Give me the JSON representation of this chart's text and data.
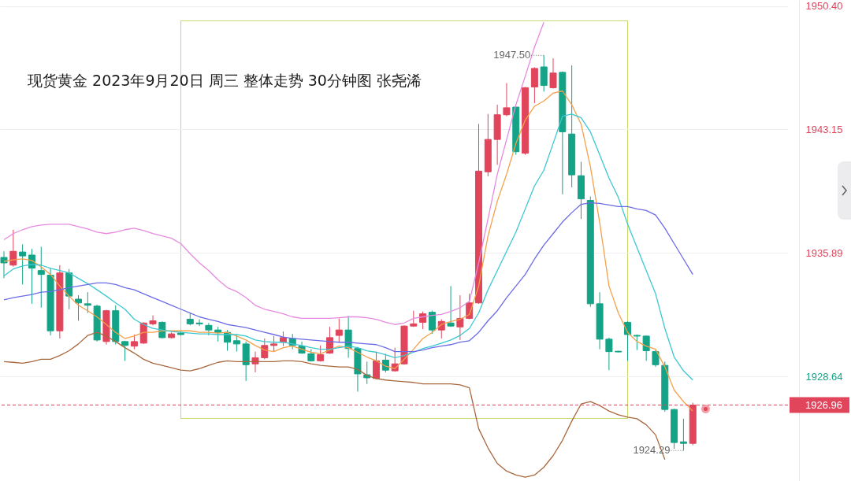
{
  "chart_data": {
    "type": "candlestick",
    "title": "现货黄金 2023年9月20日 周三 整体走势 30分钟图 张尧浠",
    "categories": [
      null,
      null,
      null,
      null,
      null,
      null,
      null,
      null,
      null,
      null,
      null,
      null,
      null,
      null,
      null,
      null,
      null,
      null,
      null,
      null,
      null,
      null,
      null,
      null,
      null,
      null,
      null,
      null,
      null,
      null,
      null,
      null,
      null,
      null,
      null,
      null,
      null,
      null,
      null,
      null,
      null,
      null,
      null,
      null,
      null,
      null,
      null,
      null,
      null,
      null,
      null,
      null,
      null,
      null,
      null,
      null,
      null,
      null,
      null,
      null,
      null,
      null,
      null,
      null,
      null,
      null,
      null,
      null,
      null,
      null,
      null,
      null,
      null,
      null,
      null
    ],
    "ohlc": [
      [
        1935.63,
        1935.99,
        1934.41,
        1935.31
      ],
      [
        1935.18,
        1937.26,
        1935.09,
        1935.99
      ],
      [
        1935.95,
        1936.4,
        1934.04,
        1935.72
      ],
      [
        1935.77,
        1936.13,
        1932.91,
        1935.0
      ],
      [
        1934.86,
        1936.26,
        1932.68,
        1934.63
      ],
      [
        1934.59,
        1935.0,
        1931.05,
        1931.32
      ],
      [
        1931.32,
        1935.18,
        1930.87,
        1934.72
      ],
      [
        1934.72,
        1934.95,
        1932.59,
        1933.36
      ],
      [
        1933.18,
        1933.41,
        1931.91,
        1932.96
      ],
      [
        1932.91,
        1933.59,
        1932.37,
        1932.82
      ],
      [
        1932.77,
        1932.86,
        1930.69,
        1930.78
      ],
      [
        1930.69,
        1932.55,
        1930.51,
        1932.5
      ],
      [
        1932.5,
        1932.82,
        1930.51,
        1930.69
      ],
      [
        1930.69,
        1930.74,
        1929.56,
        1930.46
      ],
      [
        1930.42,
        1931.1,
        1930.24,
        1930.69
      ],
      [
        1930.6,
        1931.82,
        1930.55,
        1931.78
      ],
      [
        1931.73,
        1932.23,
        1931.64,
        1931.91
      ],
      [
        1931.82,
        1931.87,
        1930.87,
        1930.92
      ],
      [
        1930.92,
        1931.23,
        1930.87,
        1931.14
      ],
      [
        1931.19,
        1931.28,
        1931.05,
        1931.1
      ],
      [
        1932.0,
        1932.37,
        1931.64,
        1931.73
      ],
      [
        1931.78,
        1932.0,
        1931.6,
        1931.73
      ],
      [
        1931.64,
        1931.78,
        1931.05,
        1931.37
      ],
      [
        1931.37,
        1931.55,
        1930.69,
        1931.23
      ],
      [
        1931.23,
        1931.37,
        1930.15,
        1930.65
      ],
      [
        1930.74,
        1931.1,
        1930.1,
        1930.55
      ],
      [
        1930.55,
        1930.69,
        1928.38,
        1929.33
      ],
      [
        1929.38,
        1930.1,
        1928.88,
        1929.74
      ],
      [
        1929.74,
        1930.87,
        1929.65,
        1930.46
      ],
      [
        1930.46,
        1931.01,
        1930.1,
        1930.55
      ],
      [
        1930.65,
        1931.28,
        1930.42,
        1930.92
      ],
      [
        1930.87,
        1931.14,
        1930.24,
        1930.46
      ],
      [
        1930.42,
        1930.69,
        1929.97,
        1930.01
      ],
      [
        1929.97,
        1930.24,
        1929.51,
        1929.56
      ],
      [
        1929.56,
        1930.46,
        1929.51,
        1929.92
      ],
      [
        1930.01,
        1931.55,
        1929.97,
        1930.92
      ],
      [
        1931.05,
        1932.05,
        1930.65,
        1931.37
      ],
      [
        1931.37,
        1932.19,
        1929.74,
        1930.28
      ],
      [
        1930.28,
        1930.37,
        1927.75,
        1928.79
      ],
      [
        1928.74,
        1929.51,
        1928.2,
        1928.56
      ],
      [
        1928.52,
        1930.1,
        1928.47,
        1929.56
      ],
      [
        1929.6,
        1929.97,
        1928.88,
        1929.01
      ],
      [
        1928.97,
        1930.33,
        1928.92,
        1929.38
      ],
      [
        1929.38,
        1931.64,
        1929.33,
        1931.6
      ],
      [
        1931.6,
        1932.5,
        1931.55,
        1931.73
      ],
      [
        1931.82,
        1932.46,
        1931.42,
        1932.32
      ],
      [
        1932.41,
        1932.5,
        1931.14,
        1931.37
      ],
      [
        1931.37,
        1932.0,
        1930.87,
        1931.87
      ],
      [
        1931.78,
        1933.95,
        1931.55,
        1931.6
      ],
      [
        1931.55,
        1933.41,
        1930.78,
        1932.05
      ],
      [
        1932.05,
        1933.5,
        1932.0,
        1932.96
      ],
      [
        1932.96,
        1943.47,
        1932.91,
        1940.7
      ],
      [
        1940.66,
        1944.06,
        1940.39,
        1942.56
      ],
      [
        1942.56,
        1944.6,
        1941.07,
        1944.01
      ],
      [
        1944.01,
        1945.87,
        1943.92,
        1944.42
      ],
      [
        1944.46,
        1944.5,
        1941.66,
        1941.84
      ],
      [
        1941.75,
        1945.64,
        1941.66,
        1945.6
      ],
      [
        1945.64,
        1946.8,
        1944.69,
        1946.73
      ],
      [
        1946.82,
        1947.5,
        1945.37,
        1945.73
      ],
      [
        1945.6,
        1947.32,
        1945.55,
        1946.46
      ],
      [
        1946.5,
        1946.55,
        1939.34,
        1943.01
      ],
      [
        1942.88,
        1946.91,
        1939.75,
        1940.48
      ],
      [
        1940.43,
        1941.25,
        1937.89,
        1939.07
      ],
      [
        1938.98,
        1939.21,
        1932.73,
        1932.91
      ],
      [
        1932.91,
        1933.59,
        1930.24,
        1930.83
      ],
      [
        1930.83,
        1930.92,
        1929.01,
        1930.1
      ],
      [
        1930.12,
        1930.15,
        1930.06,
        1930.08
      ],
      [
        1931.82,
        1931.87,
        1929.56,
        1931.1
      ],
      [
        1931.05,
        1931.1,
        1930.19,
        1931.01
      ],
      [
        1931.01,
        1931.05,
        1929.56,
        1930.15
      ],
      [
        1930.1,
        1930.19,
        1929.2,
        1929.33
      ],
      [
        1929.29,
        1929.51,
        1926.57,
        1926.7
      ],
      [
        1926.7,
        1926.75,
        1924.39,
        1924.76
      ],
      [
        1924.8,
        1926.16,
        1924.29,
        1924.71
      ],
      [
        1924.71,
        1927.1,
        1924.6,
        1926.96
      ]
    ],
    "series": [
      {
        "type": "line",
        "color": "#f5a04a",
        "values": [
          1935.4,
          1935.49,
          1935.54,
          1935.45,
          1935.08,
          1934.63,
          1933.95,
          1933.36,
          1932.82,
          1932.5,
          1932.14,
          1931.69,
          1931.23,
          1930.87,
          1931.01,
          1931.23,
          1931.23,
          1931.32,
          1931.32,
          1931.32,
          1931.32,
          1931.23,
          1931.23,
          1931.19,
          1931.23,
          1931.01,
          1930.78,
          1930.46,
          1930.19,
          1930.1,
          1930.33,
          1930.42,
          1930.24,
          1930.06,
          1929.97,
          1930.19,
          1930.42,
          1930.33,
          1930.06,
          1929.78,
          1929.56,
          1929.24,
          1929.1,
          1929.65,
          1930.24,
          1930.87,
          1931.23,
          1931.69,
          1931.87,
          1932.0,
          1932.28,
          1933.95,
          1936.9,
          1938.93,
          1940.52,
          1942.33,
          1943.69,
          1944.51,
          1944.82,
          1945.28,
          1945.41,
          1944.6,
          1943.46,
          1940.97,
          1937.67,
          1933.95,
          1932.37,
          1931.23,
          1930.69,
          1930.42,
          1930.24,
          1929.2,
          1927.84,
          1927.16,
          1926.61
        ]
      },
      {
        "type": "line",
        "color": "#3cc8d2",
        "values": [
          1934.54,
          1934.95,
          1935.13,
          1935.22,
          1935.18,
          1934.99,
          1934.86,
          1934.72,
          1934.4,
          1934.09,
          1933.73,
          1933.36,
          1932.96,
          1932.59,
          1932.0,
          1931.69,
          1931.46,
          1931.37,
          1931.28,
          1931.23,
          1931.19,
          1931.14,
          1931.14,
          1931.1,
          1931.1,
          1931.1,
          1931.01,
          1930.78,
          1930.69,
          1930.65,
          1930.65,
          1930.55,
          1930.46,
          1930.33,
          1930.24,
          1930.24,
          1930.33,
          1930.42,
          1930.33,
          1930.15,
          1930.06,
          1929.92,
          1929.74,
          1929.87,
          1930.06,
          1930.28,
          1930.42,
          1930.6,
          1930.78,
          1931.05,
          1931.46,
          1932.37,
          1933.73,
          1934.86,
          1935.99,
          1937.12,
          1938.48,
          1939.84,
          1940.75,
          1942.33,
          1943.92,
          1944.05,
          1943.83,
          1943.01,
          1941.65,
          1940.29,
          1939.16,
          1937.58,
          1936.22,
          1934.86,
          1933.5,
          1931.46,
          1929.78,
          1928.97,
          1928.43
        ]
      },
      {
        "type": "line",
        "color": "#6b6be8",
        "values": [
          1933.14,
          1933.27,
          1933.36,
          1933.45,
          1933.59,
          1933.63,
          1933.73,
          1933.86,
          1933.95,
          1934.04,
          1934.13,
          1934.13,
          1934.04,
          1933.86,
          1933.73,
          1933.5,
          1933.27,
          1933.05,
          1932.82,
          1932.59,
          1932.37,
          1932.14,
          1932.0,
          1931.87,
          1931.69,
          1931.6,
          1931.51,
          1931.37,
          1931.23,
          1931.1,
          1930.96,
          1930.87,
          1930.83,
          1930.78,
          1930.74,
          1930.69,
          1930.65,
          1930.65,
          1930.6,
          1930.55,
          1930.51,
          1930.33,
          1930.1,
          1930.1,
          1930.1,
          1930.19,
          1930.33,
          1930.42,
          1930.51,
          1930.65,
          1930.74,
          1931.23,
          1931.91,
          1932.5,
          1933.27,
          1933.95,
          1934.63,
          1935.54,
          1936.35,
          1937.03,
          1937.71,
          1938.26,
          1938.75,
          1938.84,
          1938.8,
          1938.71,
          1938.62,
          1938.62,
          1938.48,
          1938.39,
          1938.12,
          1937.35,
          1936.44,
          1935.54,
          1934.63
        ]
      },
      {
        "type": "line",
        "color": "#e68ae0",
        "values": [
          1936.67,
          1937.03,
          1937.26,
          1937.44,
          1937.53,
          1937.58,
          1937.58,
          1937.58,
          1937.44,
          1937.3,
          1937.12,
          1937.03,
          1937.12,
          1937.26,
          1937.35,
          1937.21,
          1937.03,
          1936.9,
          1936.76,
          1936.44,
          1935.85,
          1935.31,
          1934.86,
          1934.31,
          1933.86,
          1933.63,
          1933.27,
          1932.82,
          1932.59,
          1932.46,
          1932.32,
          1932.14,
          1932.05,
          1932.05,
          1932.05,
          1932.05,
          1932.09,
          1932.14,
          1932.14,
          1932.09,
          1932.0,
          1931.82,
          1931.69,
          1931.78,
          1932.05,
          1932.14,
          1932.23,
          1932.28,
          1932.46,
          1932.68,
          1933.05,
          1935.31,
          1937.89,
          1940.52,
          1942.56,
          1944.6,
          1946.27,
          1947.99,
          1949.44,
          null,
          null,
          null,
          null,
          null,
          null,
          null,
          null,
          null,
          null,
          null,
          null,
          null,
          null,
          null,
          null
        ]
      },
      {
        "type": "line",
        "color": "#a8683e",
        "values": [
          1929.51,
          1929.47,
          1929.42,
          1929.51,
          1929.65,
          1929.65,
          1929.87,
          1930.15,
          1930.55,
          1931.05,
          1931.23,
          1931.01,
          1930.69,
          1930.33,
          1930.01,
          1929.65,
          1929.42,
          1929.29,
          1929.15,
          1929.01,
          1928.97,
          1929.1,
          1929.29,
          1929.47,
          1929.56,
          1929.51,
          1929.51,
          1929.51,
          1929.51,
          1929.51,
          1929.56,
          1929.56,
          1929.51,
          1929.38,
          1929.29,
          1929.24,
          1929.2,
          1929.2,
          1929.06,
          1928.7,
          1928.52,
          1928.43,
          1928.38,
          1928.33,
          1928.29,
          1928.2,
          1928.2,
          1928.2,
          1928.2,
          1928.15,
          1927.97,
          1925.57,
          1924.44,
          1923.53,
          1923.08,
          1922.85,
          1922.72,
          1922.85,
          1923.31,
          1923.99,
          1924.89,
          1926.02,
          1927.02,
          1927.16,
          1926.93,
          1926.61,
          1926.39,
          1926.25,
          1926.16,
          1925.8,
          1925.21,
          1923.76,
          null,
          null,
          null
        ]
      }
    ],
    "ylim": [
      1922.5,
      1950.75
    ],
    "yticks": [
      {
        "value": 1950.4,
        "label": "1950.40"
      },
      1943.15,
      1935.89,
      1928.64
    ],
    "grid": "y",
    "tick_labels": "y",
    "ref_lines": [
      {
        "axis": "y",
        "value": 1926.96,
        "label": "1926.96",
        "color": "#e0455b",
        "line_style": "dashed"
      }
    ],
    "annotations": [
      "1947.50",
      "1924.29"
    ]
  }
}
